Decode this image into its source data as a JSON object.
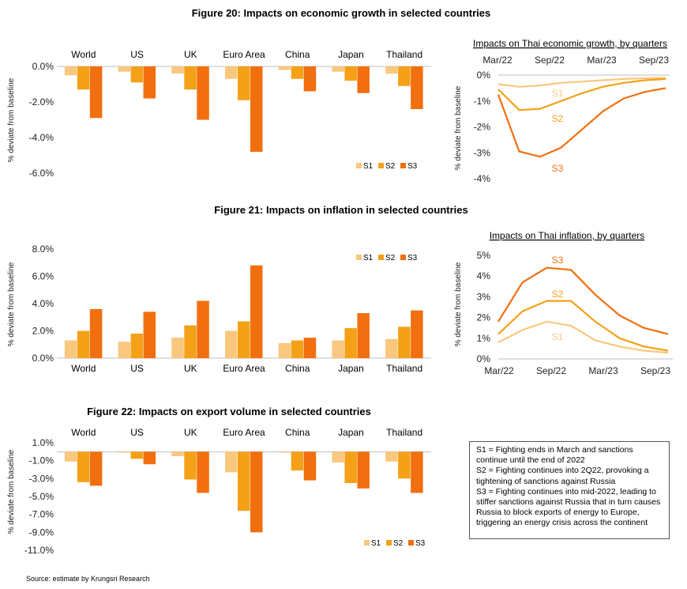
{
  "colors": {
    "S1": "#FAC77F",
    "S2": "#F4A118",
    "S3": "#F26F0F"
  },
  "figures": [
    {
      "title": "Figure 20: Impacts on economic growth in selected countries",
      "ylabel": "% deviate from baseline",
      "main": {
        "type": "bar",
        "categories": [
          "World",
          "US",
          "UK",
          "Euro Area",
          "China",
          "Japan",
          "Thailand"
        ],
        "yticks": [
          "0.0%",
          "-2.0%",
          "-4.0%",
          "-6.0%"
        ],
        "ylim": [
          -6,
          0
        ],
        "legend": [
          "S1",
          "S2",
          "S3"
        ],
        "series": [
          {
            "name": "S1",
            "values": [
              -0.5,
              -0.3,
              -0.4,
              -0.7,
              -0.2,
              -0.3,
              -0.4
            ]
          },
          {
            "name": "S2",
            "values": [
              -1.3,
              -0.9,
              -1.3,
              -1.9,
              -0.7,
              -0.8,
              -1.1
            ]
          },
          {
            "name": "S3",
            "values": [
              -2.9,
              -1.8,
              -3.0,
              -4.8,
              -1.4,
              -1.5,
              -2.4
            ]
          }
        ]
      },
      "side": {
        "type": "line",
        "title": "Impacts on Thai economic growth, by quarters",
        "xticks": [
          "Mar/22",
          "Sep/22",
          "Mar/23",
          "Sep/23"
        ],
        "yticks": [
          "0%",
          "-1%",
          "-2%",
          "-3%",
          "-4%"
        ],
        "ylim": [
          -4,
          0
        ],
        "series": [
          {
            "name": "S1",
            "values": [
              -0.35,
              -0.45,
              -0.4,
              -0.3,
              -0.25,
              -0.2,
              -0.15,
              -0.12,
              -0.1
            ]
          },
          {
            "name": "S2",
            "values": [
              -0.55,
              -1.35,
              -1.3,
              -1.0,
              -0.7,
              -0.45,
              -0.3,
              -0.2,
              -0.15
            ]
          },
          {
            "name": "S3",
            "values": [
              -0.75,
              -2.95,
              -3.15,
              -2.8,
              -2.1,
              -1.4,
              -0.9,
              -0.65,
              -0.5
            ]
          }
        ]
      }
    },
    {
      "title": "Figure 21: Impacts on inflation in selected countries",
      "ylabel": "% deviate from baseline",
      "main": {
        "type": "bar",
        "categories": [
          "World",
          "US",
          "UK",
          "Euro Area",
          "China",
          "Japan",
          "Thailand"
        ],
        "yticks": [
          "8.0%",
          "6.0%",
          "4.0%",
          "2.0%",
          "0.0%"
        ],
        "ylim": [
          0,
          8
        ],
        "legend": [
          "S1",
          "S2",
          "S3"
        ],
        "series": [
          {
            "name": "S1",
            "values": [
              1.3,
              1.2,
              1.5,
              2.0,
              1.1,
              1.3,
              1.4
            ]
          },
          {
            "name": "S2",
            "values": [
              2.0,
              1.8,
              2.4,
              2.7,
              1.3,
              2.2,
              2.3
            ]
          },
          {
            "name": "S3",
            "values": [
              3.6,
              3.4,
              4.2,
              6.8,
              1.5,
              3.3,
              3.5
            ]
          }
        ]
      },
      "side": {
        "type": "line",
        "title": "Impacts on Thai inflation, by quarters",
        "xticks": [
          "Mar/22",
          "Sep/22",
          "Mar/23",
          "Sep/23"
        ],
        "yticks": [
          "5%",
          "4%",
          "3%",
          "2%",
          "1%",
          "0%"
        ],
        "ylim": [
          0,
          5
        ],
        "series": [
          {
            "name": "S1",
            "values": [
              0.8,
              1.4,
              1.8,
              1.6,
              0.9,
              0.6,
              0.4,
              0.3
            ]
          },
          {
            "name": "S2",
            "values": [
              1.2,
              2.3,
              2.8,
              2.8,
              1.8,
              1.0,
              0.6,
              0.4
            ]
          },
          {
            "name": "S3",
            "values": [
              1.8,
              3.7,
              4.4,
              4.3,
              3.1,
              2.1,
              1.5,
              1.2
            ]
          }
        ]
      }
    },
    {
      "title": "Figure 22: Impacts on export volume in selected countries",
      "ylabel": "% deviate from baseline",
      "main": {
        "type": "bar",
        "categories": [
          "World",
          "US",
          "UK",
          "Euro Area",
          "China",
          "Japan",
          "Thailand"
        ],
        "yticks": [
          "1.0%",
          "-1.0%",
          "-3.0%",
          "-5.0%",
          "-7.0%",
          "-9.0%",
          "-11.0%"
        ],
        "ylim": [
          -11,
          1
        ],
        "legend": [
          "S1",
          "S2",
          "S3"
        ],
        "series": [
          {
            "name": "S1",
            "values": [
              -1.1,
              -0.1,
              -0.5,
              -2.3,
              -0.1,
              -1.2,
              -1.1
            ]
          },
          {
            "name": "S2",
            "values": [
              -3.4,
              -0.8,
              -3.1,
              -6.6,
              -2.1,
              -3.5,
              -3.0
            ]
          },
          {
            "name": "S3",
            "values": [
              -3.8,
              -1.4,
              -4.6,
              -9.0,
              -3.2,
              -4.1,
              -4.6
            ]
          }
        ]
      }
    }
  ],
  "note": [
    "S1 = Fighting ends in March and sanctions continue until the end of 2022",
    "S2 = Fighting continues into 2Q22, provoking a tightening of sanctions against Russia",
    "S3 = Fighting continues into mid-2022, leading to stiffer sanctions against Russia that in turn causes Russia to block exports of energy to Europe, triggering an energy crisis across the continent"
  ],
  "source": "Source: estimate by Krungsri Research"
}
